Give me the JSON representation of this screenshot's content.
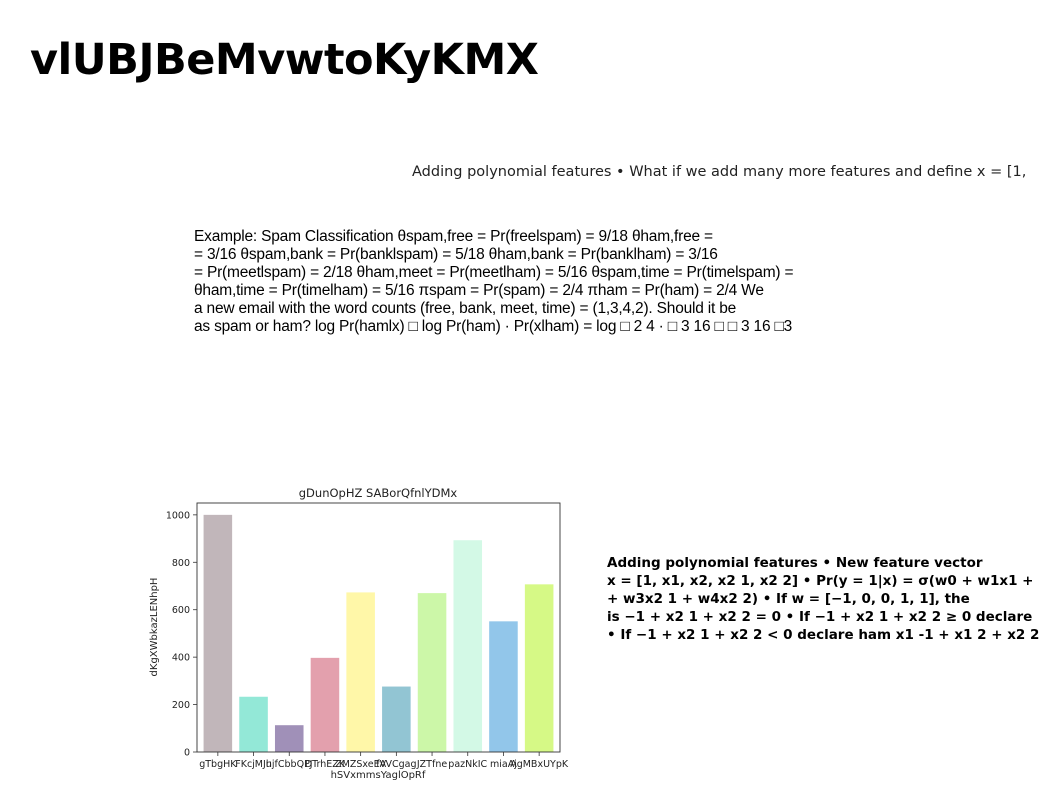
{
  "slide": {
    "title": "vlUBJBeMvwtoKyKMX",
    "subtitle": "Adding polynomial features • What if we add many more features and define x = [1,"
  },
  "example": {
    "lines": [
      "Example: Spam Classification θspam,free = Pr(freelspam) = 9/18 θham,free =",
      "= 3/16 θspam,bank = Pr(banklspam) = 5/18 θham,bank = Pr(banklham) = 3/16",
      "= Pr(meetlspam) = 2/18 θham,meet = Pr(meetlham) = 5/16 θspam,time = Pr(timelspam) =",
      "θham,time = Pr(timelham) = 5/16 πspam = Pr(spam) = 2/4 πham = Pr(ham) = 2/4 We",
      "a new email with the word counts (free, bank, meet, time) = (1,3,4,2). Should it be",
      "as spam or ham? log Pr(hamlx) □ log Pr(ham) · Pr(xlham) = log □ 2 4 · □ 3 16 □ □ 3 16 □3"
    ]
  },
  "polynomial": {
    "lines": [
      "Adding polynomial features • New feature vector",
      "x = [1, x1, x2, x2 1, x2 2] • Pr(y = 1|x) = σ(w0 + w1x1 +",
      "+ w3x2 1 + w4x2 2) • If w = [−1, 0, 0, 1, 1], the",
      "is −1 + x2 1 + x2 2 = 0 • If −1 + x2 1 + x2 2 ≥ 0 declare",
      "• If −1 + x2 1 + x2 2 < 0 declare ham x1 -1 + x1 2 + x2 2"
    ]
  },
  "chart_data": {
    "type": "bar",
    "title": "gDunOpHZ SABorQfnlYDMx",
    "xlabel": "hSVxmmsYaglOpRf",
    "ylabel": "dKgXWbkazLENhpH",
    "ylim": [
      0,
      1050
    ],
    "yticks": [
      0,
      200,
      400,
      600,
      800,
      1000
    ],
    "grid": false,
    "categories": [
      "gTbgHK",
      "FKcjMJu",
      "hjfCbbQPJ",
      "DTrhEZK",
      "ZMZSxeEV",
      "fAVCgag",
      "JZTfne",
      "pazNkIC",
      "miaAj",
      "AgMBxUYpK"
    ],
    "values": [
      1000,
      233,
      113,
      397,
      673,
      276,
      670,
      893,
      551,
      707
    ],
    "colors": [
      "#c1b6ba",
      "#93e8d7",
      "#a090b8",
      "#e3a0ad",
      "#fff7a8",
      "#92c5d3",
      "#ccf7a8",
      "#d3f9e6",
      "#92c6ea",
      "#d6f986"
    ]
  }
}
